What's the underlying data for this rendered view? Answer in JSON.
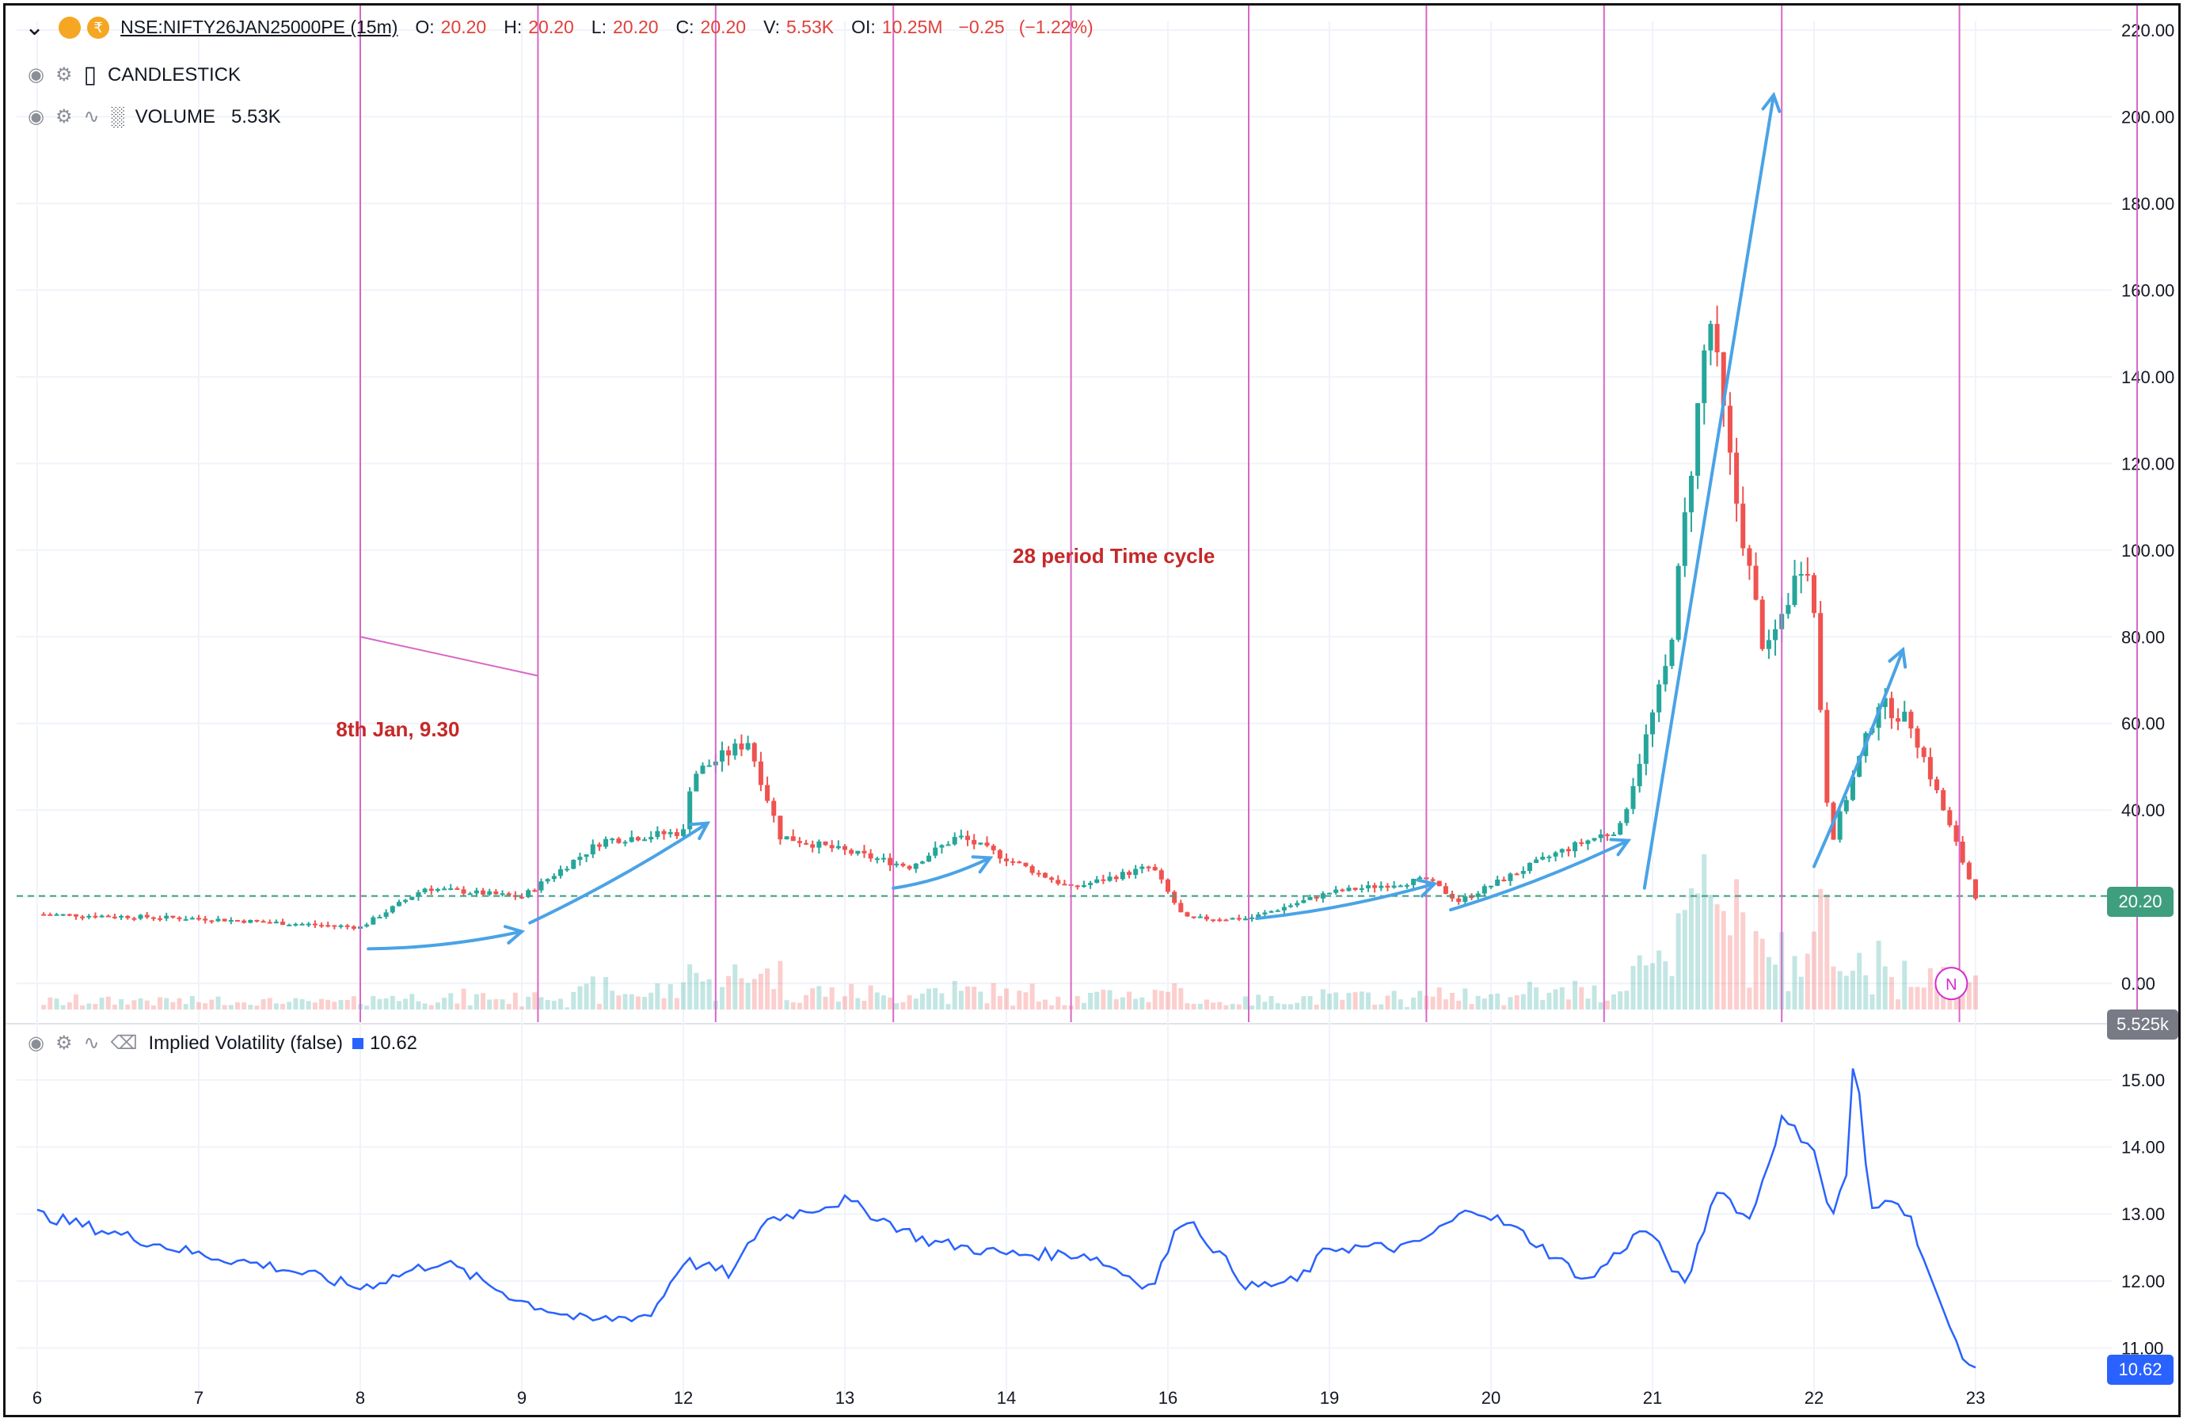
{
  "header": {
    "symbol": "NSE:NIFTY26JAN25000PE (15m)",
    "o_label": "O:",
    "o_value": "20.20",
    "h_label": "H:",
    "h_value": "20.20",
    "l_label": "L:",
    "l_value": "20.20",
    "c_label": "C:",
    "c_value": "20.20",
    "v_label": "V:",
    "v_value": "5.53K",
    "oi_label": "OI:",
    "oi_value": "10.25M",
    "change": "−0.25",
    "change_pct": "(−1.22%)"
  },
  "legends": {
    "candlestick": "CANDLESTICK",
    "volume": "VOLUME",
    "volume_value": "5.53K",
    "iv": "Implied Volatility (false)",
    "iv_value": "10.62"
  },
  "annotations": {
    "cycle_label": "28 period Time cycle",
    "start_label": "8th Jan, 9.30"
  },
  "price_tags": {
    "last_price": "20.20",
    "last_volume": "5.525k",
    "last_iv": "10.62"
  },
  "colors": {
    "up": "#26a69a",
    "down": "#ef5350",
    "cycle_line": "#d966c6",
    "arrow": "#4aa3e6",
    "iv_line": "#2962ff",
    "annotation_text": "#c62828"
  },
  "chart_data": [
    {
      "type": "candlestick",
      "interval": "15m",
      "title": "NSE:NIFTY26JAN25000PE (15m)",
      "x_ticks": [
        "6",
        "7",
        "8",
        "9",
        "12",
        "13",
        "14",
        "16",
        "19",
        "20",
        "21",
        "22",
        "23"
      ],
      "y_ticks": [
        "0.00",
        "20.00",
        "40.00",
        "60.00",
        "80.00",
        "100.00",
        "120.00",
        "140.00",
        "160.00",
        "180.00",
        "200.00",
        "220.00"
      ],
      "ylim": [
        -6,
        222
      ],
      "last_price": 20.2,
      "cycle_length_periods": 28,
      "cycle_lines_at_day_position": [
        2.0,
        3.1,
        4.2,
        5.3,
        6.4,
        7.5,
        8.6,
        9.7,
        10.8,
        11.9,
        13.0
      ],
      "price_path_keypoints": [
        {
          "x": 0.0,
          "price": 16
        },
        {
          "x": 1.0,
          "price": 15
        },
        {
          "x": 2.0,
          "price": 13
        },
        {
          "x": 2.4,
          "price": 22
        },
        {
          "x": 3.0,
          "price": 20
        },
        {
          "x": 3.5,
          "price": 33
        },
        {
          "x": 4.0,
          "price": 35
        },
        {
          "x": 4.05,
          "price": 48
        },
        {
          "x": 4.4,
          "price": 56
        },
        {
          "x": 4.6,
          "price": 34
        },
        {
          "x": 5.4,
          "price": 27
        },
        {
          "x": 5.7,
          "price": 34
        },
        {
          "x": 6.4,
          "price": 22
        },
        {
          "x": 6.9,
          "price": 27
        },
        {
          "x": 7.1,
          "price": 15
        },
        {
          "x": 7.5,
          "price": 15
        },
        {
          "x": 8.0,
          "price": 21
        },
        {
          "x": 8.6,
          "price": 24
        },
        {
          "x": 8.8,
          "price": 19
        },
        {
          "x": 9.4,
          "price": 30
        },
        {
          "x": 9.8,
          "price": 36
        },
        {
          "x": 10.1,
          "price": 75
        },
        {
          "x": 10.35,
          "price": 155
        },
        {
          "x": 10.5,
          "price": 115
        },
        {
          "x": 10.7,
          "price": 75
        },
        {
          "x": 10.95,
          "price": 100
        },
        {
          "x": 11.0,
          "price": 85
        },
        {
          "x": 11.1,
          "price": 32
        },
        {
          "x": 11.4,
          "price": 65
        },
        {
          "x": 11.6,
          "price": 60
        },
        {
          "x": 11.8,
          "price": 40
        },
        {
          "x": 12.0,
          "price": 20.2
        }
      ]
    },
    {
      "type": "bar",
      "title": "VOLUME",
      "last_value": 5.53
    },
    {
      "type": "line",
      "title": "Implied Volatility (false)",
      "y_ticks": [
        "11.00",
        "12.00",
        "13.00",
        "14.00",
        "15.00"
      ],
      "ylim": [
        10.5,
        15.6
      ],
      "last_value": 10.62,
      "keypoints": [
        {
          "x": 0.0,
          "y": 13.0
        },
        {
          "x": 0.5,
          "y": 12.7
        },
        {
          "x": 1.0,
          "y": 12.4
        },
        {
          "x": 1.5,
          "y": 12.2
        },
        {
          "x": 2.0,
          "y": 11.9
        },
        {
          "x": 2.5,
          "y": 12.3
        },
        {
          "x": 3.0,
          "y": 11.7
        },
        {
          "x": 3.4,
          "y": 11.4
        },
        {
          "x": 3.8,
          "y": 11.5
        },
        {
          "x": 4.0,
          "y": 12.3
        },
        {
          "x": 4.3,
          "y": 12.1
        },
        {
          "x": 4.5,
          "y": 12.9
        },
        {
          "x": 5.0,
          "y": 13.2
        },
        {
          "x": 5.5,
          "y": 12.6
        },
        {
          "x": 6.0,
          "y": 12.4
        },
        {
          "x": 6.5,
          "y": 12.4
        },
        {
          "x": 6.9,
          "y": 11.9
        },
        {
          "x": 7.1,
          "y": 13.0
        },
        {
          "x": 7.5,
          "y": 11.9
        },
        {
          "x": 7.8,
          "y": 12.0
        },
        {
          "x": 8.0,
          "y": 12.5
        },
        {
          "x": 8.5,
          "y": 12.5
        },
        {
          "x": 8.9,
          "y": 13.1
        },
        {
          "x": 9.2,
          "y": 12.7
        },
        {
          "x": 9.6,
          "y": 12.0
        },
        {
          "x": 9.95,
          "y": 12.8
        },
        {
          "x": 10.1,
          "y": 12.3
        },
        {
          "x": 10.2,
          "y": 11.9
        },
        {
          "x": 10.4,
          "y": 13.4
        },
        {
          "x": 10.6,
          "y": 12.9
        },
        {
          "x": 10.8,
          "y": 14.4
        },
        {
          "x": 11.0,
          "y": 14.0
        },
        {
          "x": 11.1,
          "y": 12.9
        },
        {
          "x": 11.2,
          "y": 13.6
        },
        {
          "x": 11.25,
          "y": 15.5
        },
        {
          "x": 11.35,
          "y": 13.0
        },
        {
          "x": 11.5,
          "y": 13.3
        },
        {
          "x": 11.6,
          "y": 12.9
        },
        {
          "x": 11.8,
          "y": 11.5
        },
        {
          "x": 11.9,
          "y": 11.0
        },
        {
          "x": 12.0,
          "y": 10.62
        }
      ]
    }
  ]
}
